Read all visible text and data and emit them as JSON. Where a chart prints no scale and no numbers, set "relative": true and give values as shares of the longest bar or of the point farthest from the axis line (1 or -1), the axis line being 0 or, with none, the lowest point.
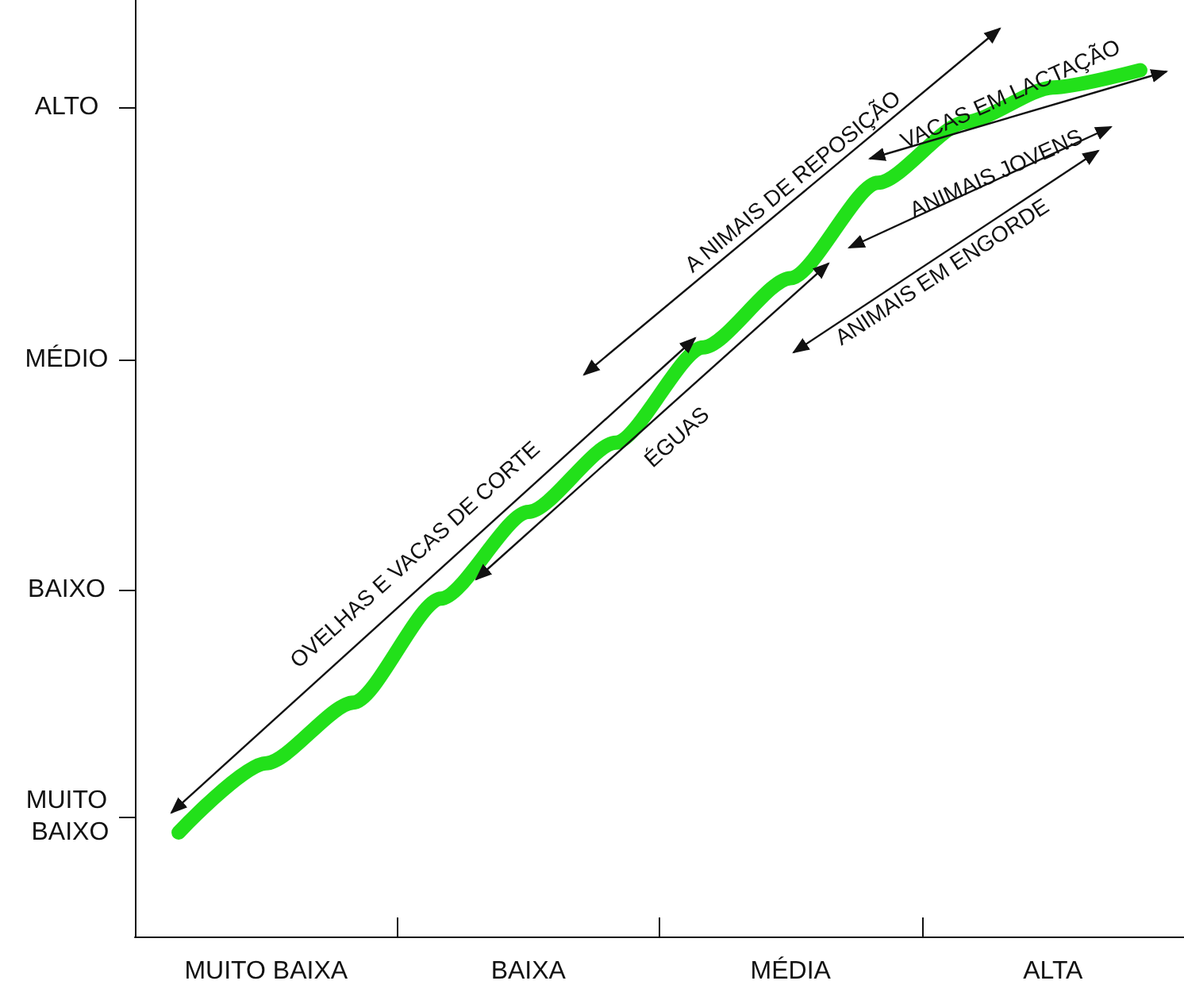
{
  "chart_data": {
    "type": "line",
    "color": "#22e01a",
    "line_style": "solid",
    "grid": false,
    "relative": true,
    "categories": [
      null,
      "MUITO BAIXA",
      null,
      null,
      "BAIXA",
      null,
      null,
      "MÉDIA",
      null,
      null,
      "ALTA",
      null
    ],
    "values": [
      0.12,
      0.2,
      0.27,
      0.39,
      0.49,
      0.57,
      0.68,
      0.76,
      0.87,
      0.94,
      0.98,
      1.0
    ],
    "annotations": [
      "A NIMAIS DE REPOSIÇÃO",
      "VACAS EM LACTAÇÃO",
      "ANIMAIS JOVENS",
      "ANIMAIS EM ENGORDE",
      "ÉGUAS",
      "OVELHAS E VACAS DE CORTE",
      "ALTO",
      "MÉDIO",
      "BAIXO",
      "MUITO BAIXO"
    ]
  }
}
